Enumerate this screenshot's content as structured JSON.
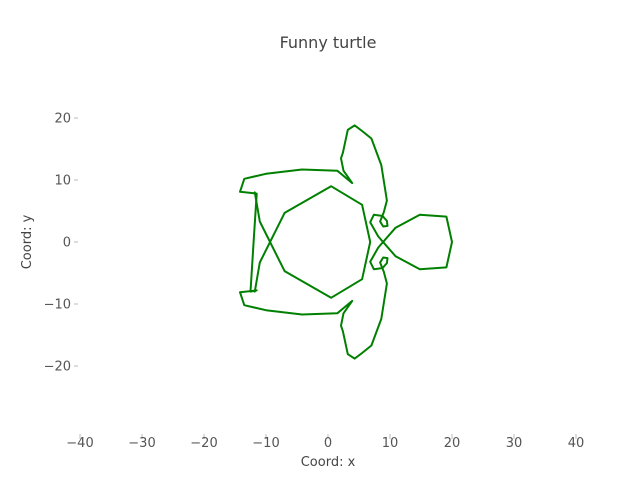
{
  "chart_data": {
    "type": "line",
    "title": "Funny turtle",
    "xlabel": "Coord: x",
    "ylabel": "Coord: y",
    "xlim": [
      -40,
      40
    ],
    "ylim": [
      -30,
      30
    ],
    "xticks": [
      -40,
      -30,
      -20,
      -10,
      0,
      10,
      20,
      30,
      40
    ],
    "yticks": [
      -20,
      -10,
      0,
      10,
      20
    ],
    "grid": false,
    "series": [
      {
        "color": "#008000",
        "line_width": 2,
        "x": [
          5.5,
          7.0,
          8.6,
          9.5,
          9.0,
          8.4,
          8.9,
          9.6,
          9.5,
          8.8,
          7.4,
          6.8,
          8.1,
          10.9,
          14.8,
          19.1,
          20.0,
          19.1,
          14.8,
          10.9,
          8.1,
          6.8,
          7.4,
          8.8,
          9.5,
          9.6,
          8.9,
          8.4,
          9.0,
          9.5,
          8.6,
          7.0,
          5.5,
          4.3,
          3.2,
          2.4,
          2.1,
          2.5,
          3.9,
          1.5,
          -4.2,
          -10.0,
          -13.5,
          -14.2,
          -11.5,
          -12.0,
          -12.5,
          -11.5,
          -14.2,
          -13.5,
          -10.0,
          -4.2,
          1.5,
          3.9,
          2.5,
          2.1,
          2.4,
          3.2,
          4.3,
          5.5
        ],
        "y": [
          -17.9,
          -16.7,
          -12.4,
          -6.7,
          -4.8,
          -3.3,
          -2.5,
          -2.6,
          -3.4,
          -4.2,
          -4.4,
          -3.2,
          -0.9,
          2.3,
          4.4,
          4.1,
          0.0,
          -4.1,
          -4.4,
          -2.3,
          0.9,
          3.2,
          4.4,
          4.2,
          3.4,
          2.6,
          2.5,
          3.3,
          4.8,
          6.7,
          12.4,
          16.7,
          17.9,
          18.8,
          18.1,
          14.4,
          13.5,
          11.5,
          9.5,
          11.5,
          11.7,
          11.0,
          10.2,
          8.1,
          7.8,
          0.0,
          -8.0,
          -7.8,
          -8.1,
          -10.2,
          -11.0,
          -11.7,
          -11.5,
          -9.5,
          -11.5,
          -13.5,
          -14.4,
          -18.1,
          -18.8,
          -17.9
        ]
      },
      {
        "color": "#008000",
        "line_width": 2,
        "x": [
          -11.8,
          -11.0,
          -7.0,
          0.5,
          5.5,
          6.8,
          5.5,
          0.5,
          -7.0,
          -11.0,
          -11.8
        ],
        "y": [
          8.0,
          3.3,
          -4.7,
          -9.0,
          -6.0,
          0.0,
          6.0,
          9.0,
          4.7,
          -3.3,
          -8.0
        ]
      }
    ]
  }
}
